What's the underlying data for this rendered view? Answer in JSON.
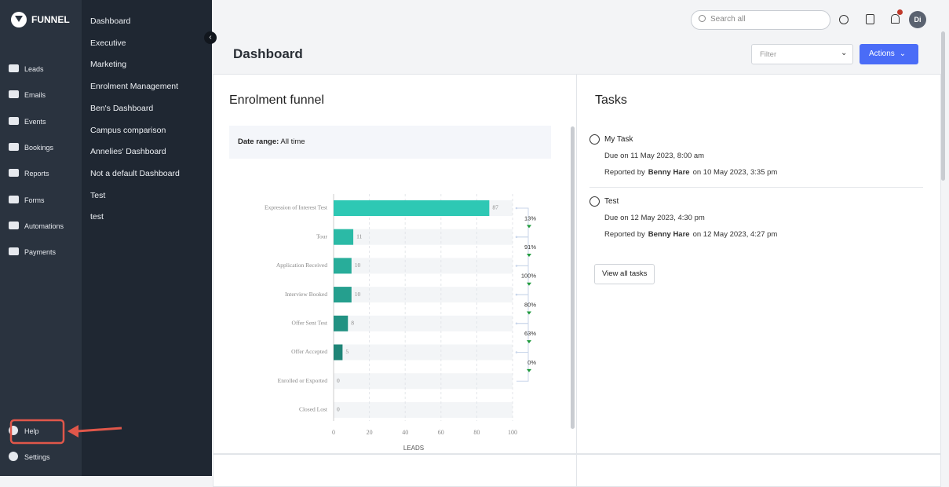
{
  "brand": "FUNNEL",
  "nav": [
    "Leads",
    "Emails",
    "Events",
    "Bookings",
    "Reports",
    "Forms",
    "Automations",
    "Payments"
  ],
  "nav_bottom": [
    "Help",
    "Settings"
  ],
  "dashboards": [
    "Dashboard",
    "Executive",
    "Marketing",
    "Enrolment Management",
    "Ben's Dashboard",
    "Campus comparison",
    "Annelies' Dashboard",
    "Not a default Dashboard",
    "Test",
    "test"
  ],
  "topbar": {
    "search_placeholder": "Search all",
    "avatar": "Di"
  },
  "page_title": "Dashboard",
  "filter_placeholder": "Filter",
  "actions_button": "Actions",
  "funnel_card": {
    "title": "Enrolment funnel",
    "date_range_label": "Date range:",
    "date_range_value": "All time"
  },
  "chart_data": {
    "type": "bar",
    "orientation": "horizontal",
    "categories": [
      "Expression of Interest Test",
      "Tour",
      "Application Received",
      "Interview Booked",
      "Offer Sent Test",
      "Offer Accepted",
      "Enrolled or Exported",
      "Closed Lost"
    ],
    "values": [
      87,
      11,
      10,
      10,
      8,
      5,
      0,
      0
    ],
    "colors": [
      "#2ec8b4",
      "#2bbaa6",
      "#28ad9a",
      "#259f8e",
      "#229283",
      "#1f8577",
      "#1c786c",
      "#1a6c61"
    ],
    "xlim": [
      0,
      100
    ],
    "xticks": [
      0,
      20,
      40,
      60,
      80,
      100
    ],
    "xlabel": "LEADS",
    "grid": true,
    "conversions": {
      "values": [
        13,
        91,
        100,
        80,
        63,
        0
      ],
      "value_labels": [
        "13%",
        "91%",
        "100%",
        "80%",
        "63%",
        "0%"
      ],
      "color": "#1f9a3c"
    }
  },
  "tasks": {
    "title": "Tasks",
    "items": [
      {
        "name": "My Task",
        "due": "Due on 11 May 2023, 8:00 am",
        "reported_prefix": "Reported by",
        "reporter": "Benny Hare",
        "reported_suffix": "on 10 May 2023, 3:35 pm"
      },
      {
        "name": "Test",
        "due": "Due on 12 May 2023, 4:30 pm",
        "reported_prefix": "Reported by",
        "reporter": "Benny Hare",
        "reported_suffix": "on 12 May 2023, 4:27 pm"
      }
    ],
    "view_all": "View all tasks"
  }
}
